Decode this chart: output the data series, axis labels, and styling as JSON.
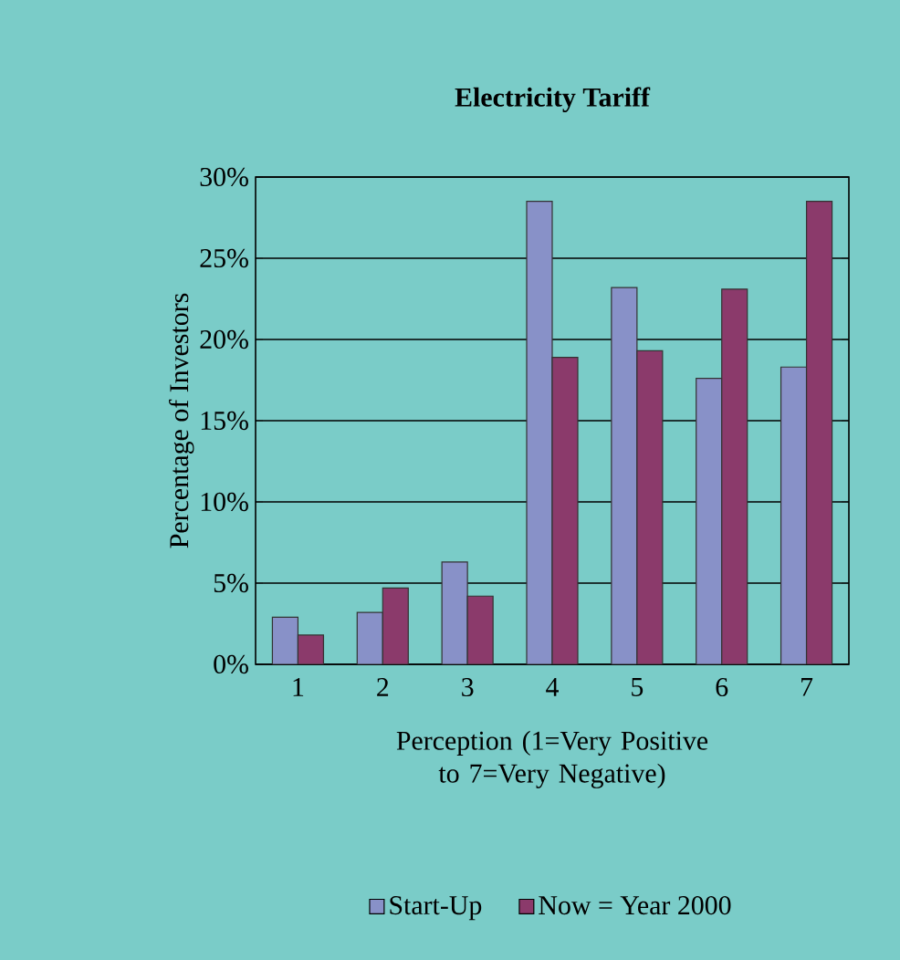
{
  "chart_data": {
    "type": "bar",
    "title": "Electricity Tariff",
    "xlabel": "Perception (1=Very Positive to 7=Very Negative)",
    "ylabel": "Percentage of Investors",
    "categories": [
      "1",
      "2",
      "3",
      "4",
      "5",
      "6",
      "7"
    ],
    "series": [
      {
        "name": "Start-Up",
        "color": "#8891c8",
        "values": [
          2.9,
          3.2,
          6.3,
          28.5,
          23.2,
          17.6,
          18.3
        ]
      },
      {
        "name": "Now = Year 2000",
        "color": "#8b3a6b",
        "values": [
          1.8,
          4.7,
          4.2,
          18.9,
          19.3,
          23.1,
          28.5
        ]
      }
    ],
    "ylim": [
      0,
      30
    ],
    "yticks": [
      {
        "value": 0,
        "label": "0%"
      },
      {
        "value": 5,
        "label": "5%"
      },
      {
        "value": 10,
        "label": "10%"
      },
      {
        "value": 15,
        "label": "15%"
      },
      {
        "value": 20,
        "label": "20%"
      },
      {
        "value": 25,
        "label": "25%"
      },
      {
        "value": 30,
        "label": "30%"
      }
    ],
    "grid": "y",
    "legend": "bottom"
  }
}
